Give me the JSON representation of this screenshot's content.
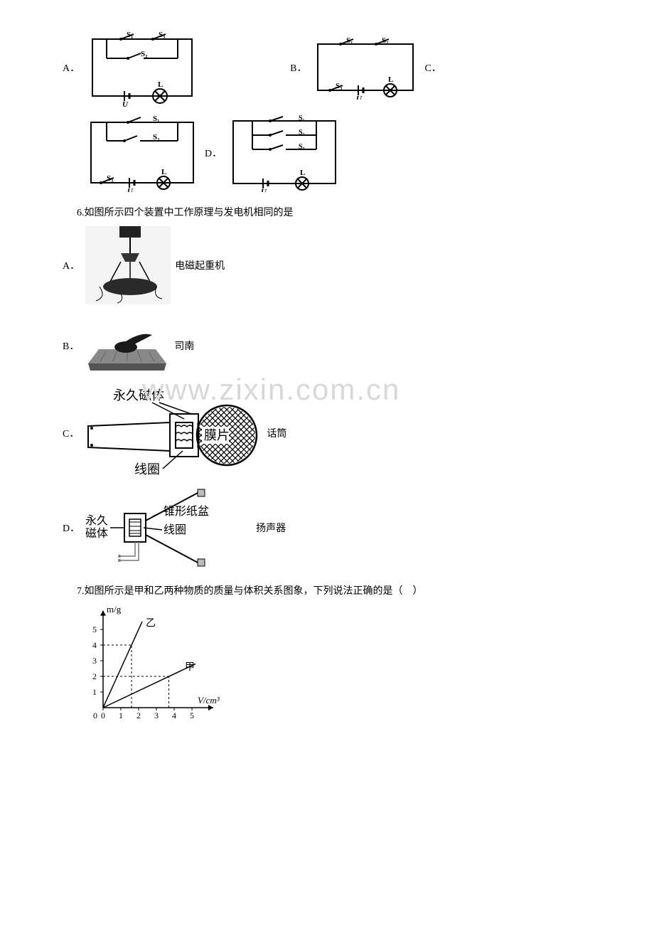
{
  "q5_options": {
    "A": "A．",
    "B": "B．",
    "C": "C．",
    "D": "D．"
  },
  "q5_circuit": {
    "switches": [
      "S₁",
      "S₂",
      "S₃"
    ],
    "lamp": "L",
    "source": "U",
    "line_color": "#000000",
    "bg_color": "#ffffff",
    "line_width": 2
  },
  "q6": {
    "text": "6.如图所示四个装置中工作原理与发电机相同的是",
    "A": {
      "label": "A．",
      "caption": "电磁起重机"
    },
    "B": {
      "label": "B．",
      "caption": "司南"
    },
    "C": {
      "label": "C．",
      "caption": "话筒",
      "parts": {
        "magnet": "永久磁体",
        "diaphragm": "膜片",
        "coil": "线圈"
      }
    },
    "D": {
      "label": "D．",
      "caption": "扬声器",
      "parts": {
        "magnet_l1": "永久",
        "magnet_l2": "磁体",
        "cone": "锥形纸盆",
        "coil": "线圈"
      }
    }
  },
  "watermark": "www.zixin.com.cn",
  "q7": {
    "text": "7.如图所示是甲和乙两种物质的质量与体积关系图象，下列说法正确的是（　）",
    "chart": {
      "type": "line",
      "xlabel": "V/cm³",
      "ylabel": "m/g",
      "xlim": [
        0,
        6
      ],
      "ylim": [
        0,
        6
      ],
      "xticks": [
        0,
        1,
        2,
        3,
        4,
        5
      ],
      "yticks": [
        1,
        2,
        3,
        4,
        5
      ],
      "series": [
        {
          "name": "乙",
          "points": [
            [
              0,
              0
            ],
            [
              2.2,
              5.5
            ]
          ],
          "color": "#000000",
          "width": 1.5
        },
        {
          "name": "甲",
          "points": [
            [
              0,
              0
            ],
            [
              5.2,
              2.8
            ]
          ],
          "color": "#000000",
          "width": 1.5
        }
      ],
      "dash_lines": [
        {
          "from": [
            0,
            4
          ],
          "to": [
            1.6,
            4
          ]
        },
        {
          "from": [
            1.6,
            0
          ],
          "to": [
            1.6,
            4
          ]
        },
        {
          "from": [
            0,
            2
          ],
          "to": [
            3.7,
            2
          ]
        },
        {
          "from": [
            3.7,
            0
          ],
          "to": [
            3.7,
            2
          ]
        }
      ],
      "label_yi_pos": [
        2.4,
        5.2
      ],
      "label_jia_pos": [
        4.6,
        2.4
      ],
      "axis_color": "#000000",
      "bg": "#ffffff",
      "fontsize": 12
    }
  }
}
